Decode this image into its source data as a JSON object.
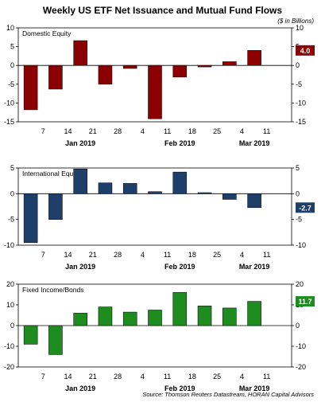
{
  "header": {
    "title": "Weekly US ETF Net Issuance and Mutual Fund Flows",
    "subtitle": "($ in Billions)"
  },
  "footer": {
    "source": "Source: Thomson Reuters Datastream, HORAN Capital Advisors"
  },
  "chart_data": [
    {
      "type": "bar",
      "title": "Domestic Equity",
      "color": "#8b0000",
      "x_ticks": [
        "7",
        "14",
        "21",
        "28",
        "4",
        "11",
        "18",
        "25",
        "4",
        "11"
      ],
      "month_labels": [
        "Jan 2019",
        "Feb 2019",
        "Mar 2019"
      ],
      "values": [
        -11.8,
        -6.3,
        6.6,
        -5.0,
        -0.8,
        -14.2,
        -3.1,
        -0.4,
        1.0,
        4.0
      ],
      "ylim": [
        -15,
        10
      ],
      "yticks": [
        10,
        5,
        0,
        -5,
        -10,
        -15
      ],
      "latest_value": "4.0",
      "grid": false
    },
    {
      "type": "bar",
      "title": "International Equity",
      "color": "#1f3f6b",
      "x_ticks": [
        "7",
        "14",
        "21",
        "28",
        "4",
        "11",
        "18",
        "25",
        "4",
        "11"
      ],
      "month_labels": [
        "Jan 2019",
        "Feb 2019",
        "Mar 2019"
      ],
      "values": [
        -9.5,
        -5.0,
        4.8,
        2.1,
        2.0,
        0.4,
        4.2,
        0.2,
        -1.1,
        -2.7
      ],
      "ylim": [
        -10,
        5
      ],
      "yticks": [
        5,
        0,
        -5,
        -10
      ],
      "latest_value": "-2.7",
      "grid": false
    },
    {
      "type": "bar",
      "title": "Fixed Income/Bonds",
      "color": "#1e8c1e",
      "x_ticks": [
        "7",
        "14",
        "21",
        "28",
        "4",
        "11",
        "18",
        "25",
        "4",
        "11"
      ],
      "month_labels": [
        "Jan 2019",
        "Feb 2019",
        "Mar 2019"
      ],
      "values": [
        -9.0,
        -14.0,
        6.0,
        9.0,
        6.5,
        7.5,
        16.0,
        9.5,
        8.5,
        11.7
      ],
      "ylim": [
        -20,
        20
      ],
      "yticks": [
        20,
        10,
        0,
        -10,
        -20
      ],
      "latest_value": "11.7",
      "grid": false
    }
  ]
}
